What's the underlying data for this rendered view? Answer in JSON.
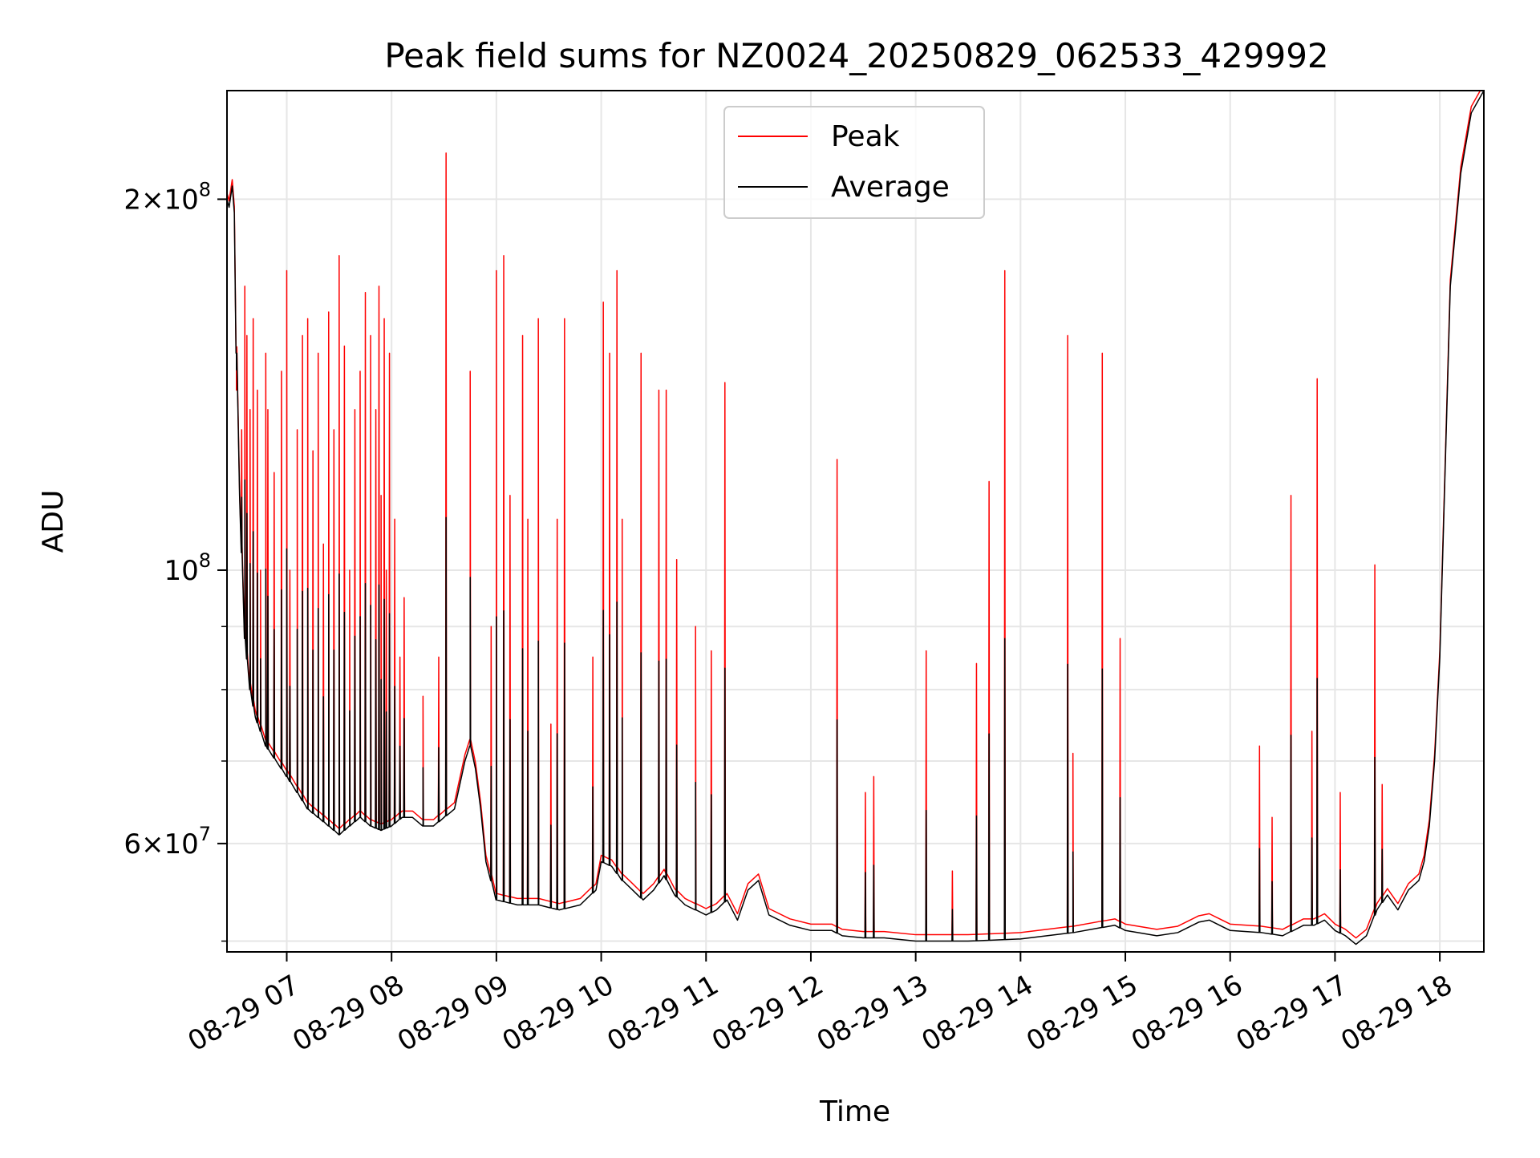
{
  "chart_data": {
    "type": "line",
    "title": "Peak field sums for NZ0024_20250829_062533_429992",
    "xlabel": "Time",
    "ylabel": "ADU",
    "yscale": "log",
    "x_unit": "hours (time of day, 2025-08-29)",
    "xlim": [
      6.43,
      18.42
    ],
    "ylim": [
      49000000,
      245000000
    ],
    "x_ticks": [
      {
        "value": 7,
        "label": "08-29 07"
      },
      {
        "value": 8,
        "label": "08-29 08"
      },
      {
        "value": 9,
        "label": "08-29 09"
      },
      {
        "value": 10,
        "label": "08-29 10"
      },
      {
        "value": 11,
        "label": "08-29 11"
      },
      {
        "value": 12,
        "label": "08-29 12"
      },
      {
        "value": 13,
        "label": "08-29 13"
      },
      {
        "value": 14,
        "label": "08-29 14"
      },
      {
        "value": 15,
        "label": "08-29 15"
      },
      {
        "value": 16,
        "label": "08-29 16"
      },
      {
        "value": 17,
        "label": "08-29 17"
      },
      {
        "value": 18,
        "label": "08-29 18"
      }
    ],
    "y_major_ticks": [
      {
        "value": 100000000,
        "base": "10",
        "exp": "8",
        "mult": ""
      },
      {
        "value": 200000000,
        "base": "10",
        "exp": "8",
        "mult": "2"
      },
      {
        "value": 60000000,
        "base": "10",
        "exp": "7",
        "mult": "6"
      }
    ],
    "y_minor_ticks": [
      50000000,
      70000000,
      80000000,
      90000000
    ],
    "grid": true,
    "legend": {
      "placement": "top-center",
      "entries": [
        {
          "name": "Peak",
          "color": "#ff0000"
        },
        {
          "name": "Average",
          "color": "#000000"
        }
      ]
    },
    "series": [
      {
        "name": "Average",
        "color": "#000000",
        "x": [
          6.43,
          6.45,
          6.48,
          6.5,
          6.52,
          6.55,
          6.6,
          6.65,
          6.7,
          6.75,
          6.8,
          6.9,
          7.0,
          7.1,
          7.2,
          7.3,
          7.4,
          7.5,
          7.6,
          7.7,
          7.8,
          7.9,
          8.0,
          8.1,
          8.2,
          8.3,
          8.4,
          8.5,
          8.6,
          8.7,
          8.75,
          8.8,
          8.85,
          8.9,
          9.0,
          9.2,
          9.4,
          9.6,
          9.8,
          9.95,
          10.0,
          10.1,
          10.2,
          10.3,
          10.4,
          10.5,
          10.6,
          10.7,
          10.8,
          10.9,
          11.0,
          11.1,
          11.2,
          11.3,
          11.4,
          11.5,
          11.6,
          11.8,
          12.0,
          12.2,
          12.3,
          12.5,
          12.7,
          13.0,
          13.5,
          14.0,
          14.5,
          14.9,
          15.0,
          15.3,
          15.5,
          15.7,
          15.8,
          16.0,
          16.3,
          16.5,
          16.7,
          16.8,
          16.9,
          17.0,
          17.1,
          17.2,
          17.3,
          17.4,
          17.5,
          17.6,
          17.7,
          17.8,
          17.85,
          17.9,
          17.95,
          18.0,
          18.05,
          18.1,
          18.2,
          18.3,
          18.42
        ],
        "y": [
          200000000,
          197000000,
          205000000,
          195000000,
          150000000,
          115000000,
          88000000,
          80000000,
          76000000,
          74000000,
          72000000,
          70000000,
          68000000,
          66000000,
          64000000,
          63000000,
          62000000,
          61000000,
          62000000,
          63000000,
          62000000,
          61500000,
          62000000,
          63000000,
          63000000,
          62000000,
          62000000,
          63000000,
          64000000,
          70000000,
          72000000,
          69000000,
          64000000,
          58000000,
          54000000,
          53500000,
          53500000,
          53000000,
          53500000,
          55000000,
          58000000,
          57500000,
          56000000,
          55000000,
          54000000,
          55000000,
          56500000,
          54500000,
          53500000,
          53000000,
          52500000,
          53000000,
          54000000,
          52000000,
          55000000,
          56000000,
          52500000,
          51500000,
          51000000,
          51000000,
          50500000,
          50300000,
          50300000,
          50000000,
          50000000,
          50200000,
          50800000,
          51500000,
          51000000,
          50500000,
          50800000,
          51800000,
          52000000,
          51000000,
          50800000,
          50500000,
          51500000,
          51500000,
          52000000,
          51000000,
          50500000,
          49700000,
          50500000,
          53000000,
          54500000,
          53000000,
          55000000,
          56000000,
          58000000,
          62000000,
          70000000,
          85000000,
          120000000,
          170000000,
          210000000,
          235000000,
          245000000
        ]
      }
    ],
    "peak_spikes": {
      "series": "Peak",
      "color": "#ff0000",
      "x": [
        6.52,
        6.57,
        6.6,
        6.62,
        6.65,
        6.68,
        6.72,
        6.75,
        6.8,
        6.82,
        6.88,
        6.95,
        7.0,
        7.03,
        7.1,
        7.15,
        7.2,
        7.25,
        7.3,
        7.35,
        7.4,
        7.45,
        7.5,
        7.55,
        7.6,
        7.65,
        7.7,
        7.75,
        7.8,
        7.85,
        7.88,
        7.9,
        7.93,
        7.95,
        7.98,
        8.03,
        8.08,
        8.12,
        8.3,
        8.45,
        8.52,
        8.75,
        8.95,
        9.0,
        9.07,
        9.13,
        9.25,
        9.3,
        9.4,
        9.52,
        9.58,
        9.65,
        9.92,
        10.02,
        10.08,
        10.15,
        10.2,
        10.38,
        10.55,
        10.62,
        10.72,
        10.9,
        11.05,
        11.18,
        12.25,
        12.52,
        12.6,
        13.1,
        13.35,
        13.58,
        13.7,
        13.85,
        14.45,
        14.5,
        14.78,
        14.95,
        16.28,
        16.4,
        16.58,
        16.78,
        16.83,
        17.05,
        17.38,
        17.45
      ],
      "y": [
        140000000,
        130000000,
        170000000,
        155000000,
        135000000,
        160000000,
        140000000,
        100000000,
        150000000,
        135000000,
        120000000,
        145000000,
        175000000,
        100000000,
        130000000,
        155000000,
        160000000,
        125000000,
        150000000,
        105000000,
        162000000,
        130000000,
        180000000,
        152000000,
        100000000,
        135000000,
        145000000,
        168000000,
        155000000,
        135000000,
        170000000,
        115000000,
        160000000,
        100000000,
        150000000,
        110000000,
        85000000,
        95000000,
        79000000,
        85000000,
        218000000,
        145000000,
        90000000,
        175000000,
        180000000,
        115000000,
        155000000,
        110000000,
        160000000,
        75000000,
        110000000,
        160000000,
        85000000,
        165000000,
        150000000,
        175000000,
        110000000,
        150000000,
        140000000,
        140000000,
        102000000,
        90000000,
        86000000,
        142000000,
        123000000,
        66000000,
        68000000,
        86000000,
        57000000,
        84000000,
        118000000,
        175000000,
        155000000,
        71000000,
        150000000,
        88000000,
        72000000,
        63000000,
        115000000,
        74000000,
        143000000,
        66000000,
        101000000,
        67000000
      ]
    }
  }
}
